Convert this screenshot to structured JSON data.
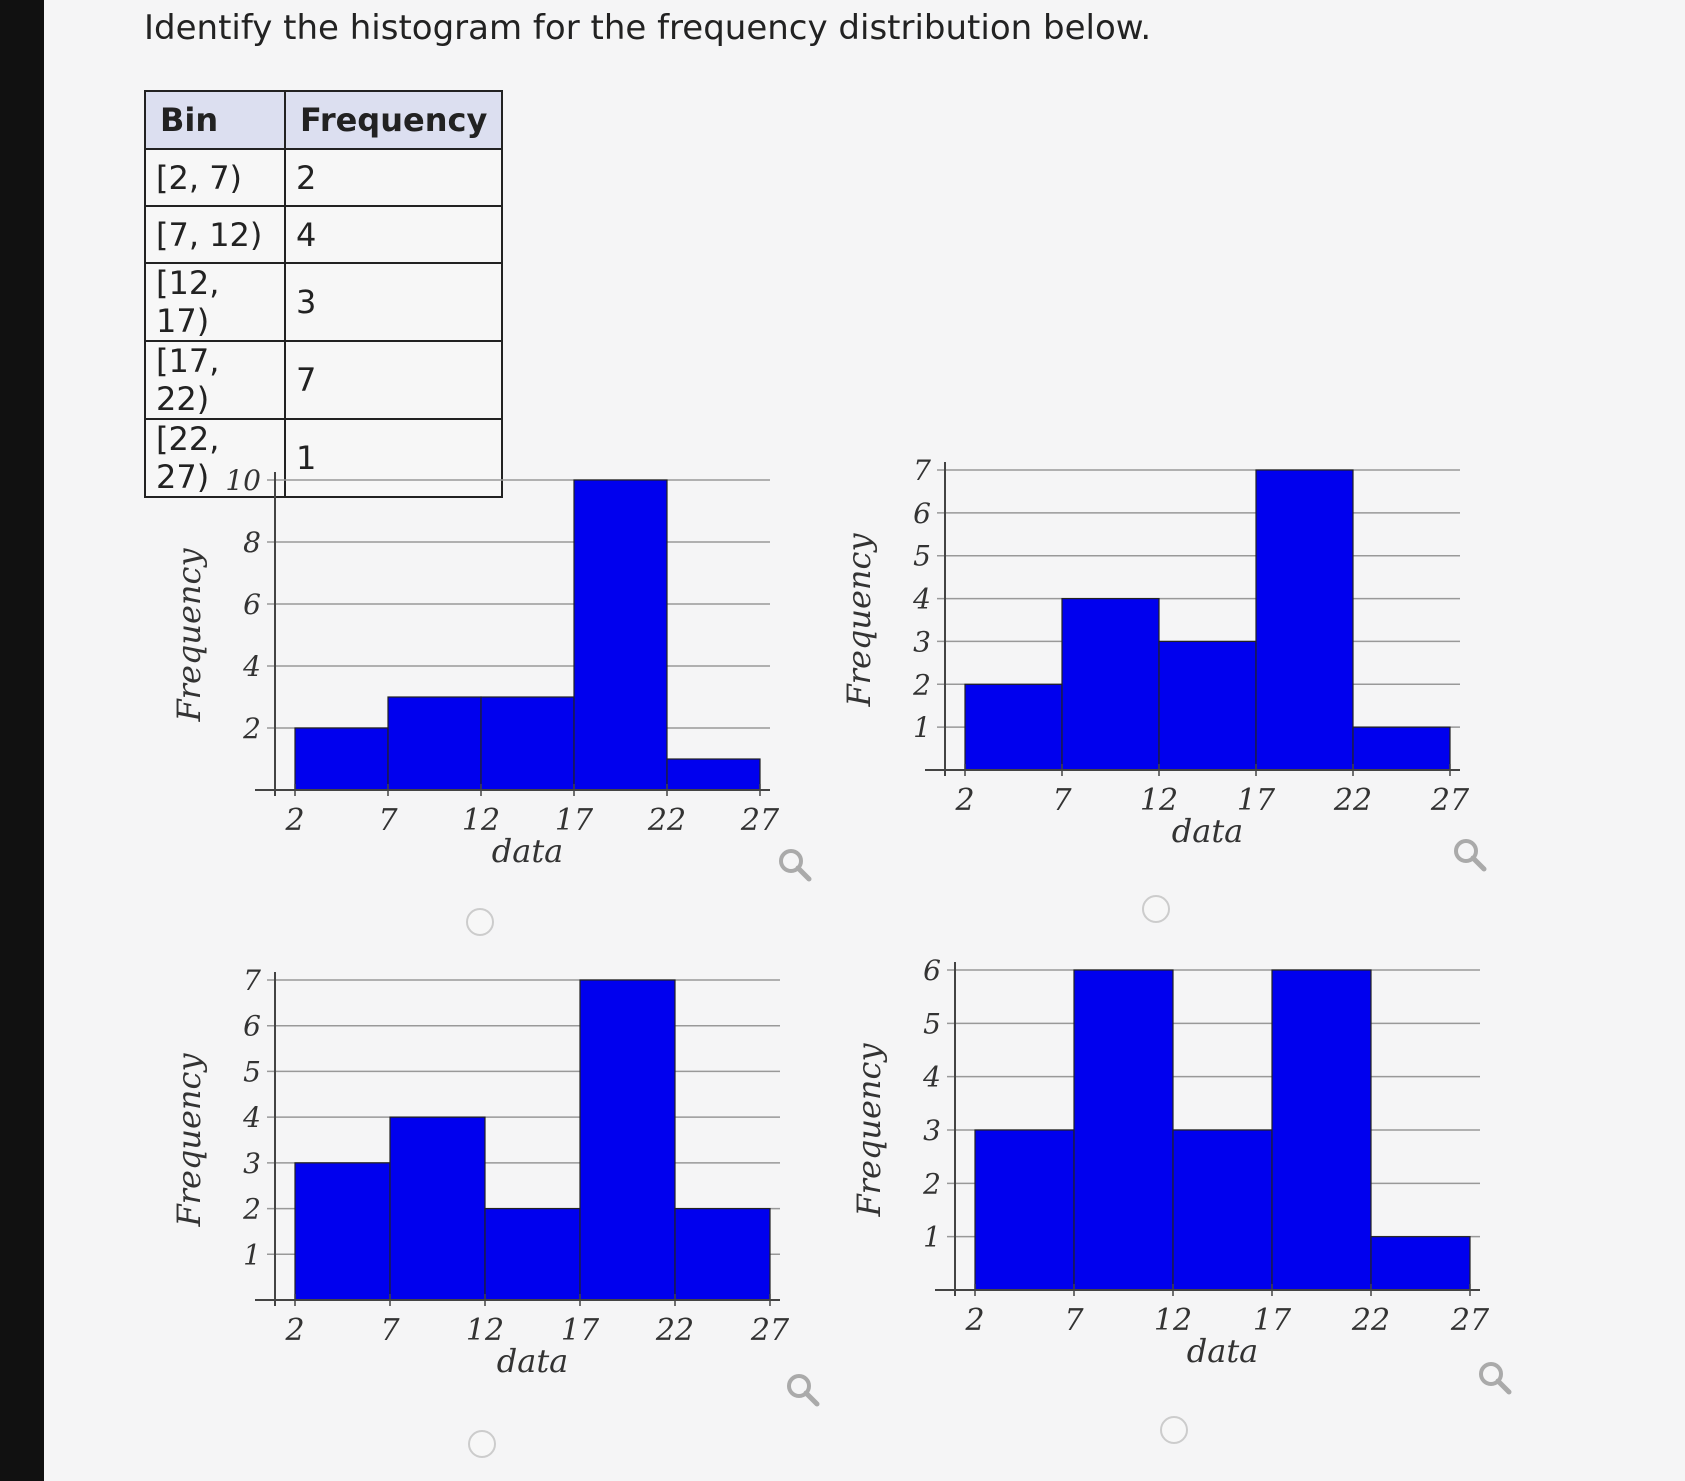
{
  "question": "Identify the histogram for the frequency distribution below.",
  "table": {
    "headers": [
      "Bin",
      "Frequency"
    ],
    "rows": [
      [
        "[2, 7)",
        "2"
      ],
      [
        "[7, 12)",
        "4"
      ],
      [
        "[12, 17)",
        "3"
      ],
      [
        "[17, 22)",
        "7"
      ],
      [
        "[22, 27)",
        "1"
      ]
    ]
  },
  "colors": {
    "bar": "#0000ee",
    "grid": "#999999"
  },
  "icons": {
    "zoom": "magnifier-icon",
    "radio": "radio-unselected"
  },
  "chart_data": [
    {
      "type": "bar",
      "option": "A",
      "categories": [
        "[2,7)",
        "[7,12)",
        "[12,17)",
        "[17,22)",
        "[22,27)"
      ],
      "values": [
        2,
        3,
        3,
        10,
        1
      ],
      "xticks": [
        "2",
        "7",
        "12",
        "17",
        "22",
        "27"
      ],
      "yticks": [
        "2",
        "4",
        "6",
        "8",
        "10"
      ],
      "ylim": [
        0,
        10
      ],
      "xlabel": "data",
      "ylabel": "Frequency",
      "grid": true
    },
    {
      "type": "bar",
      "option": "B",
      "categories": [
        "[2,7)",
        "[7,12)",
        "[12,17)",
        "[17,22)",
        "[22,27)"
      ],
      "values": [
        2,
        4,
        3,
        7,
        1
      ],
      "xticks": [
        "2",
        "7",
        "12",
        "17",
        "22",
        "27"
      ],
      "yticks": [
        "1",
        "2",
        "3",
        "4",
        "5",
        "6",
        "7"
      ],
      "ylim": [
        0,
        7
      ],
      "xlabel": "data",
      "ylabel": "Frequency",
      "grid": true
    },
    {
      "type": "bar",
      "option": "C",
      "categories": [
        "[2,7)",
        "[7,12)",
        "[12,17)",
        "[17,22)",
        "[22,27)"
      ],
      "values": [
        3,
        4,
        2,
        7,
        2
      ],
      "xticks": [
        "2",
        "7",
        "12",
        "17",
        "22",
        "27"
      ],
      "yticks": [
        "1",
        "2",
        "3",
        "4",
        "5",
        "6",
        "7"
      ],
      "ylim": [
        0,
        7
      ],
      "xlabel": "data",
      "ylabel": "Frequency",
      "grid": true
    },
    {
      "type": "bar",
      "option": "D",
      "categories": [
        "[2,7)",
        "[7,12)",
        "[12,17)",
        "[17,22)",
        "[22,27)"
      ],
      "values": [
        3,
        6,
        3,
        6,
        1
      ],
      "xticks": [
        "2",
        "7",
        "12",
        "17",
        "22",
        "27"
      ],
      "yticks": [
        "1",
        "2",
        "3",
        "4",
        "5",
        "6"
      ],
      "ylim": [
        0,
        6
      ],
      "xlabel": "data",
      "ylabel": "Frequency",
      "grid": true
    }
  ]
}
